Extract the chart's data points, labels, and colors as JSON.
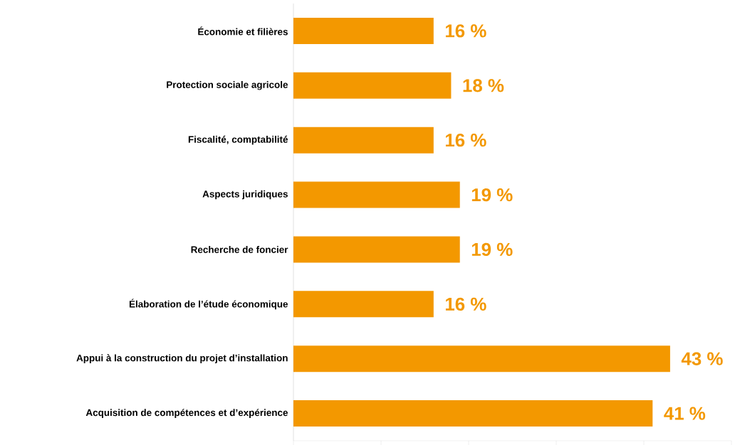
{
  "chart_data": {
    "type": "bar",
    "orientation": "horizontal",
    "categories": [
      "Économie et filières",
      "Protection sociale agricole",
      "Fiscalité, comptabilité",
      "Aspects juridiques",
      "Recherche de foncier",
      "Élaboration de l’étude économique",
      "Appui à la construction du projet d’installation",
      "Acquisition de compétences et d’expérience"
    ],
    "values": [
      16,
      18,
      16,
      19,
      19,
      16,
      43,
      41
    ],
    "value_labels": [
      "16 %",
      "18 %",
      "16 %",
      "19 %",
      "19 %",
      "16 %",
      "43 %",
      "41 %"
    ],
    "color": "#f39800",
    "xlim": [
      0,
      50
    ],
    "xticks": [
      {
        "value": 0,
        "label": null
      },
      {
        "value": 10,
        "label": null
      },
      {
        "value": 20,
        "label": null
      },
      {
        "value": 30,
        "label": null
      },
      {
        "value": 40,
        "label": null
      },
      {
        "value": 50,
        "label": null
      }
    ],
    "tick_labels": "y",
    "grid": false
  }
}
